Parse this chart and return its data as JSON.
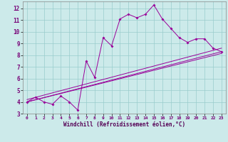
{
  "title": "",
  "xlabel": "Windchill (Refroidissement éolien,°C)",
  "xlim": [
    -0.5,
    23.5
  ],
  "ylim": [
    3,
    12.6
  ],
  "yticks": [
    3,
    4,
    5,
    6,
    7,
    8,
    9,
    10,
    11,
    12
  ],
  "xticks": [
    0,
    1,
    2,
    3,
    4,
    5,
    6,
    7,
    8,
    9,
    10,
    11,
    12,
    13,
    14,
    15,
    16,
    17,
    18,
    19,
    20,
    21,
    22,
    23
  ],
  "bg_color": "#cceaea",
  "line_color": "#990099",
  "grid_color": "#99cccc",
  "line1_x": [
    0,
    1,
    2,
    3,
    4,
    5,
    6,
    7,
    8,
    9,
    10,
    11,
    12,
    13,
    14,
    15,
    16,
    17,
    18,
    19,
    20,
    21,
    22,
    23
  ],
  "line1_y": [
    4.0,
    4.4,
    4.0,
    3.8,
    4.5,
    4.0,
    3.3,
    7.5,
    6.1,
    9.5,
    8.8,
    11.1,
    11.5,
    11.2,
    11.5,
    12.3,
    11.1,
    10.3,
    9.5,
    9.1,
    9.4,
    9.4,
    8.6,
    8.3
  ],
  "line2_x": [
    0,
    23
  ],
  "line2_y": [
    4.0,
    8.3
  ],
  "line3_x": [
    0,
    23
  ],
  "line3_y": [
    4.2,
    8.6
  ],
  "line4_x": [
    0,
    23
  ],
  "line4_y": [
    4.0,
    8.15
  ]
}
